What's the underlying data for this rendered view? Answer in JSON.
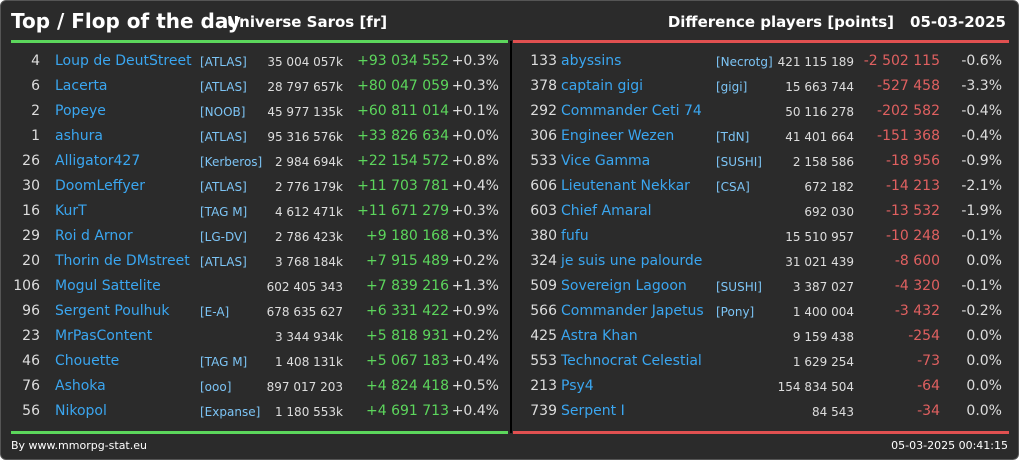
{
  "header": {
    "title": "Top / Flop of the day",
    "universe": "Universe Saros [fr]",
    "metric": "Difference players [points]",
    "date": "05-03-2025"
  },
  "colors": {
    "positive": "#5cd65c",
    "negative": "#e06060",
    "name": "#3aa6f0",
    "background": "#2b2b2b"
  },
  "top": [
    {
      "rank": "4",
      "name": "Loup de DeutStreet",
      "alliance": "[ATLAS]",
      "points": "35 004 057k",
      "diff": "+93 034 552",
      "pct": "+0.3%"
    },
    {
      "rank": "6",
      "name": "Lacerta",
      "alliance": "[ATLAS]",
      "points": "28 797 657k",
      "diff": "+80 047 059",
      "pct": "+0.3%"
    },
    {
      "rank": "2",
      "name": "Popeye",
      "alliance": "[NOOB]",
      "points": "45 977 135k",
      "diff": "+60 811 014",
      "pct": "+0.1%"
    },
    {
      "rank": "1",
      "name": "ashura",
      "alliance": "[ATLAS]",
      "points": "95 316 576k",
      "diff": "+33 826 634",
      "pct": "+0.0%"
    },
    {
      "rank": "26",
      "name": "Alligator427",
      "alliance": "[Kerberos]",
      "points": "2 984 694k",
      "diff": "+22 154 572",
      "pct": "+0.8%"
    },
    {
      "rank": "30",
      "name": "DoomLeffyer",
      "alliance": "[ATLAS]",
      "points": "2 776 179k",
      "diff": "+11 703 781",
      "pct": "+0.4%"
    },
    {
      "rank": "16",
      "name": "KurT",
      "alliance": "[TAG M]",
      "points": "4 612 471k",
      "diff": "+11 671 279",
      "pct": "+0.3%"
    },
    {
      "rank": "29",
      "name": "Roi d Arnor",
      "alliance": "[LG-DV]",
      "points": "2 786 423k",
      "diff": "+9 180 168",
      "pct": "+0.3%"
    },
    {
      "rank": "20",
      "name": "Thorin de DMstreet",
      "alliance": "[ATLAS]",
      "points": "3 768 184k",
      "diff": "+7 915 489",
      "pct": "+0.2%"
    },
    {
      "rank": "106",
      "name": "Mogul Sattelite",
      "alliance": "",
      "points": "602 405 343",
      "diff": "+7 839 216",
      "pct": "+1.3%"
    },
    {
      "rank": "96",
      "name": "Sergent Poulhuk",
      "alliance": "[E-A]",
      "points": "678 635 627",
      "diff": "+6 331 422",
      "pct": "+0.9%"
    },
    {
      "rank": "23",
      "name": "MrPasContent",
      "alliance": "",
      "points": "3 344 934k",
      "diff": "+5 818 931",
      "pct": "+0.2%"
    },
    {
      "rank": "46",
      "name": "Chouette",
      "alliance": "[TAG M]",
      "points": "1 408 131k",
      "diff": "+5 067 183",
      "pct": "+0.4%"
    },
    {
      "rank": "76",
      "name": "Ashoka",
      "alliance": "[ooo]",
      "points": "897 017 203",
      "diff": "+4 824 418",
      "pct": "+0.5%"
    },
    {
      "rank": "56",
      "name": "Nikopol",
      "alliance": "[Expanse]",
      "points": "1 180 553k",
      "diff": "+4 691 713",
      "pct": "+0.4%"
    }
  ],
  "flop": [
    {
      "rank": "133",
      "name": "abyssins",
      "alliance": "[Necrotg]",
      "points": "421 115 189",
      "diff": "-2 502 115",
      "pct": "-0.6%"
    },
    {
      "rank": "378",
      "name": "captain gigi",
      "alliance": "[gigi]",
      "points": "15 663 744",
      "diff": "-527 458",
      "pct": "-3.3%"
    },
    {
      "rank": "292",
      "name": "Commander Ceti 74",
      "alliance": "",
      "points": "50 116 278",
      "diff": "-202 582",
      "pct": "-0.4%"
    },
    {
      "rank": "306",
      "name": "Engineer Wezen",
      "alliance": "[TdN]",
      "points": "41 401 664",
      "diff": "-151 368",
      "pct": "-0.4%"
    },
    {
      "rank": "533",
      "name": "Vice Gamma",
      "alliance": "[SUSHI]",
      "points": "2 158 586",
      "diff": "-18 956",
      "pct": "-0.9%"
    },
    {
      "rank": "606",
      "name": "Lieutenant Nekkar",
      "alliance": "[CSA]",
      "points": "672 182",
      "diff": "-14 213",
      "pct": "-2.1%"
    },
    {
      "rank": "603",
      "name": "Chief Amaral",
      "alliance": "",
      "points": "692 030",
      "diff": "-13 532",
      "pct": "-1.9%"
    },
    {
      "rank": "380",
      "name": "fufu",
      "alliance": "",
      "points": "15 510 957",
      "diff": "-10 248",
      "pct": "-0.1%"
    },
    {
      "rank": "324",
      "name": "je suis une palourde",
      "alliance": "",
      "points": "31 021 439",
      "diff": "-8 600",
      "pct": "0.0%"
    },
    {
      "rank": "509",
      "name": "Sovereign Lagoon",
      "alliance": "[SUSHI]",
      "points": "3 387 027",
      "diff": "-4 320",
      "pct": "-0.1%"
    },
    {
      "rank": "566",
      "name": "Commander Japetus",
      "alliance": "[Pony]",
      "points": "1 400 004",
      "diff": "-3 432",
      "pct": "-0.2%"
    },
    {
      "rank": "425",
      "name": "Astra Khan",
      "alliance": "",
      "points": "9 159 438",
      "diff": "-254",
      "pct": "0.0%"
    },
    {
      "rank": "553",
      "name": "Technocrat Celestial",
      "alliance": "",
      "points": "1 629 254",
      "diff": "-73",
      "pct": "0.0%"
    },
    {
      "rank": "213",
      "name": "Psy4",
      "alliance": "",
      "points": "154 834 504",
      "diff": "-64",
      "pct": "0.0%"
    },
    {
      "rank": "739",
      "name": "Serpent I",
      "alliance": "",
      "points": "84 543",
      "diff": "-34",
      "pct": "0.0%"
    }
  ],
  "footer": {
    "source": "By www.mmorpg-stat.eu",
    "timestamp": "05-03-2025 00:41:15"
  }
}
